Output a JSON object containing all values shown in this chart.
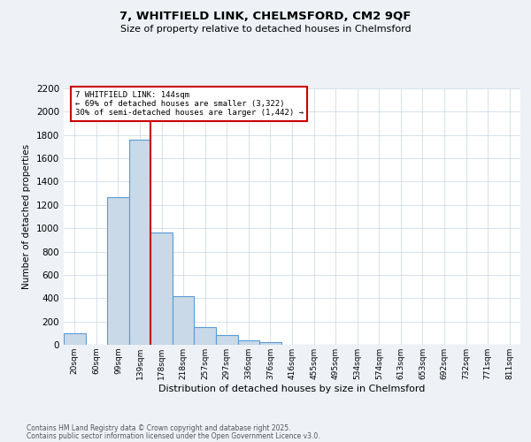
{
  "title1": "7, WHITFIELD LINK, CHELMSFORD, CM2 9QF",
  "title2": "Size of property relative to detached houses in Chelmsford",
  "xlabel": "Distribution of detached houses by size in Chelmsford",
  "ylabel": "Number of detached properties",
  "bin_labels": [
    "20sqm",
    "60sqm",
    "99sqm",
    "139sqm",
    "178sqm",
    "218sqm",
    "257sqm",
    "297sqm",
    "336sqm",
    "376sqm",
    "416sqm",
    "455sqm",
    "495sqm",
    "534sqm",
    "574sqm",
    "613sqm",
    "653sqm",
    "692sqm",
    "732sqm",
    "771sqm",
    "811sqm"
  ],
  "bar_values": [
    100,
    0,
    1270,
    1760,
    960,
    420,
    150,
    80,
    40,
    20,
    0,
    0,
    0,
    0,
    0,
    0,
    0,
    0,
    0,
    0,
    0
  ],
  "bar_color": "#c9d9e8",
  "bar_edge_color": "#5b9bd5",
  "red_line_color": "#cc0000",
  "annotation_text": "7 WHITFIELD LINK: 144sqm\n← 69% of detached houses are smaller (3,322)\n30% of semi-detached houses are larger (1,442) →",
  "annotation_box_color": "#ffffff",
  "annotation_box_edge": "#cc0000",
  "ylim_max": 2200,
  "yticks": [
    0,
    200,
    400,
    600,
    800,
    1000,
    1200,
    1400,
    1600,
    1800,
    2000,
    2200
  ],
  "footer1": "Contains HM Land Registry data © Crown copyright and database right 2025.",
  "footer2": "Contains public sector information licensed under the Open Government Licence v3.0.",
  "bg_color": "#eef2f7",
  "plot_bg_color": "#ffffff",
  "grid_color": "#c8d4e0"
}
